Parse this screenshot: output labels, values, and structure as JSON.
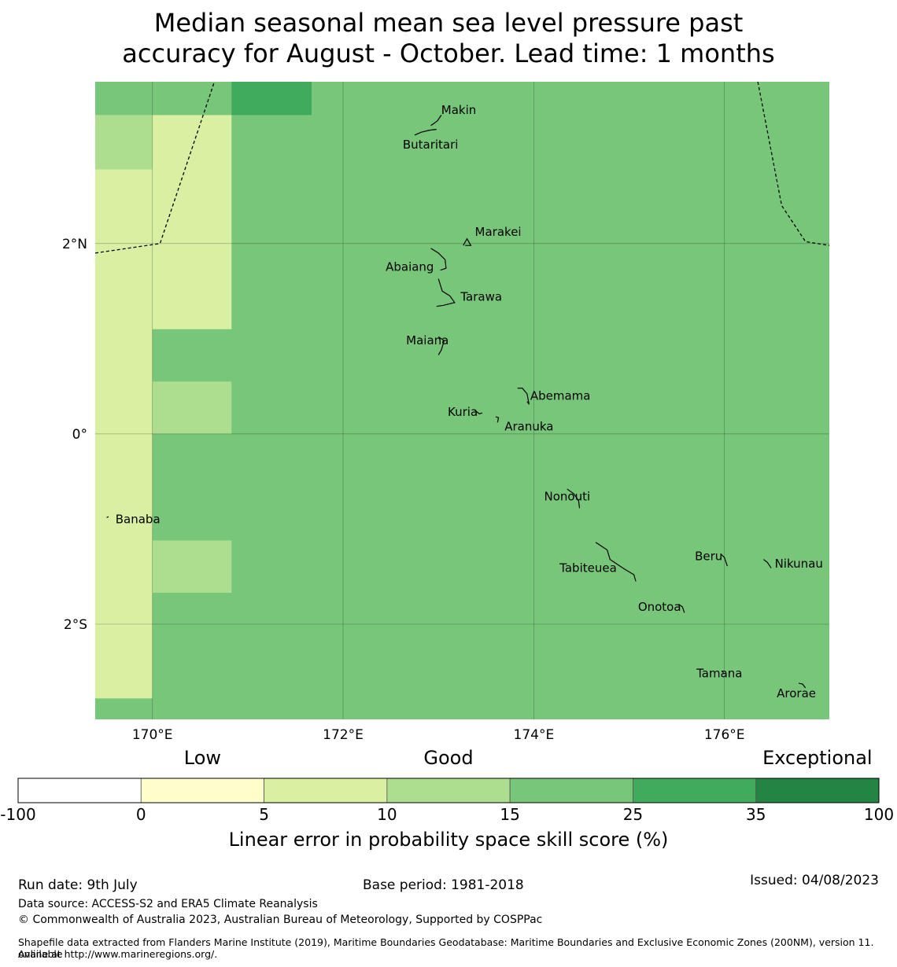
{
  "title": {
    "line1": "Median seasonal mean sea level pressure past",
    "line2": "accuracy for August - October. Lead time: 1 months"
  },
  "map": {
    "lon_range": [
      169.4,
      177.1
    ],
    "lat_range": [
      -3.0,
      3.7
    ],
    "x_ticks": [
      {
        "value": 170,
        "label": "170°E"
      },
      {
        "value": 172,
        "label": "172°E"
      },
      {
        "value": 174,
        "label": "174°E"
      },
      {
        "value": 176,
        "label": "176°E"
      }
    ],
    "y_ticks": [
      {
        "value": 2,
        "label": "2°N"
      },
      {
        "value": 0,
        "label": "0°"
      },
      {
        "value": -2,
        "label": "2°S"
      }
    ],
    "background_color": "#78c679",
    "cells": [
      {
        "lon0": 169.4,
        "lon1": 170.0,
        "lat0": 3.35,
        "lat1": 3.7,
        "color": "#78c679"
      },
      {
        "lon0": 170.0,
        "lon1": 170.83,
        "lat0": 3.35,
        "lat1": 3.7,
        "color": "#78c679"
      },
      {
        "lon0": 170.83,
        "lon1": 171.67,
        "lat0": 3.35,
        "lat1": 3.7,
        "color": "#41ab5d"
      },
      {
        "lon0": 169.4,
        "lon1": 170.0,
        "lat0": 2.78,
        "lat1": 3.35,
        "color": "#addd8e"
      },
      {
        "lon0": 169.4,
        "lon1": 170.0,
        "lat0": -2.78,
        "lat1": 2.78,
        "color": "#d9f0a3"
      },
      {
        "lon0": 170.0,
        "lon1": 170.83,
        "lat0": 1.1,
        "lat1": 3.35,
        "color": "#d9f0a3"
      },
      {
        "lon0": 170.0,
        "lon1": 170.83,
        "lat0": 0.0,
        "lat1": 0.55,
        "color": "#addd8e"
      },
      {
        "lon0": 170.0,
        "lon1": 170.83,
        "lat0": -1.67,
        "lat1": -1.12,
        "color": "#addd8e"
      }
    ],
    "boundaries": [
      [
        [
          169.4,
          1.9
        ],
        [
          170.08,
          2.0
        ],
        [
          170.65,
          3.7
        ]
      ],
      [
        [
          176.35,
          3.7
        ],
        [
          176.6,
          2.4
        ],
        [
          176.85,
          2.02
        ],
        [
          177.1,
          1.98
        ]
      ]
    ],
    "islands": [
      {
        "name": "Makin",
        "label": "Makin",
        "lon": 172.98,
        "lat": 3.33,
        "label_dx": 6,
        "label_dy": -4,
        "anchor": "start",
        "shape": [
          [
            172.92,
            3.24
          ],
          [
            172.95,
            3.26
          ],
          [
            172.99,
            3.29
          ],
          [
            173.03,
            3.35
          ]
        ]
      },
      {
        "name": "Butaritari",
        "label": "Butaritari",
        "lon": 172.95,
        "lat": 3.08,
        "label_dx": -4,
        "label_dy": 10,
        "anchor": "middle",
        "shape": [
          [
            172.75,
            3.14
          ],
          [
            172.82,
            3.17
          ],
          [
            172.9,
            3.19
          ],
          [
            172.98,
            3.2
          ]
        ]
      },
      {
        "name": "Marakei",
        "label": "Marakei",
        "lon": 173.3,
        "lat": 2.0,
        "label_dx": 10,
        "label_dy": -10,
        "anchor": "start",
        "shape": [
          [
            173.26,
            1.98
          ],
          [
            173.3,
            2.05
          ],
          [
            173.34,
            1.98
          ],
          [
            173.28,
            1.98
          ]
        ]
      },
      {
        "name": "Abaiang",
        "label": "Abaiang",
        "lon": 172.98,
        "lat": 1.78,
        "label_dx": -34,
        "label_dy": 8,
        "anchor": "middle",
        "shape": [
          [
            172.92,
            1.95
          ],
          [
            173.0,
            1.9
          ],
          [
            173.07,
            1.83
          ],
          [
            173.08,
            1.74
          ],
          [
            173.02,
            1.72
          ]
        ]
      },
      {
        "name": "Tarawa",
        "label": "Tarawa",
        "lon": 173.15,
        "lat": 1.4,
        "label_dx": 10,
        "label_dy": 0,
        "anchor": "start",
        "shape": [
          [
            173.0,
            1.63
          ],
          [
            173.04,
            1.5
          ],
          [
            173.12,
            1.45
          ],
          [
            173.17,
            1.38
          ],
          [
            173.05,
            1.35
          ],
          [
            172.98,
            1.34
          ]
        ]
      },
      {
        "name": "Maiana",
        "label": "Maiana",
        "lon": 173.05,
        "lat": 0.95,
        "label_dx": -20,
        "label_dy": 1,
        "anchor": "middle",
        "shape": [
          [
            173.0,
            1.02
          ],
          [
            173.06,
            0.98
          ],
          [
            173.03,
            0.88
          ],
          [
            173.0,
            0.83
          ]
        ]
      },
      {
        "name": "Abemama",
        "label": "Abemama",
        "lon": 173.88,
        "lat": 0.4,
        "label_dx": 10,
        "label_dy": 5,
        "anchor": "start",
        "shape": [
          [
            173.83,
            0.48
          ],
          [
            173.88,
            0.48
          ],
          [
            173.93,
            0.42
          ],
          [
            173.95,
            0.31
          ],
          [
            173.93,
            0.34
          ]
        ]
      },
      {
        "name": "Kuria",
        "label": "Kuria",
        "lon": 173.42,
        "lat": 0.22,
        "label_dx": -20,
        "label_dy": 4,
        "anchor": "middle",
        "shape": [
          [
            173.38,
            0.25
          ],
          [
            173.43,
            0.21
          ],
          [
            173.46,
            0.22
          ]
        ]
      },
      {
        "name": "Aranuka",
        "label": "Aranuka",
        "lon": 173.62,
        "lat": 0.15,
        "label_dx": 40,
        "label_dy": 14,
        "anchor": "middle",
        "shape": [
          [
            173.6,
            0.18
          ],
          [
            173.63,
            0.17
          ],
          [
            173.62,
            0.12
          ]
        ]
      },
      {
        "name": "Nonouti",
        "label": "Nonouti",
        "lon": 174.4,
        "lat": -0.65,
        "label_dx": -6,
        "label_dy": 6,
        "anchor": "middle",
        "shape": [
          [
            174.35,
            -0.58
          ],
          [
            174.42,
            -0.63
          ],
          [
            174.47,
            -0.7
          ],
          [
            174.48,
            -0.78
          ]
        ]
      },
      {
        "name": "Tabiteuea",
        "label": "Tabiteuea",
        "lon": 174.95,
        "lat": -1.45,
        "label_dx": -46,
        "label_dy": 0,
        "anchor": "middle",
        "shape": [
          [
            174.65,
            -1.14
          ],
          [
            174.77,
            -1.22
          ],
          [
            174.8,
            -1.32
          ],
          [
            174.95,
            -1.42
          ],
          [
            175.05,
            -1.48
          ],
          [
            175.07,
            -1.55
          ]
        ]
      },
      {
        "name": "Beru",
        "label": "Beru",
        "lon": 176.0,
        "lat": -1.32,
        "label_dx": -20,
        "label_dy": 1,
        "anchor": "middle",
        "shape": [
          [
            175.96,
            -1.26
          ],
          [
            176.0,
            -1.3
          ],
          [
            176.03,
            -1.39
          ]
        ]
      },
      {
        "name": "Nikunau",
        "label": "Nikunau",
        "lon": 176.45,
        "lat": -1.38,
        "label_dx": 40,
        "label_dy": 3,
        "anchor": "middle",
        "shape": [
          [
            176.41,
            -1.32
          ],
          [
            176.45,
            -1.35
          ],
          [
            176.49,
            -1.41
          ]
        ]
      },
      {
        "name": "Onotoa",
        "label": "Onotoa",
        "lon": 175.55,
        "lat": -1.85,
        "label_dx": -28,
        "label_dy": 1,
        "anchor": "middle",
        "shape": [
          [
            175.52,
            -1.79
          ],
          [
            175.56,
            -1.82
          ],
          [
            175.58,
            -1.88
          ]
        ]
      },
      {
        "name": "Tamana",
        "label": "Tamana",
        "lon": 175.98,
        "lat": -2.5,
        "label_dx": -4,
        "label_dy": 7,
        "anchor": "middle",
        "shape": [
          [
            175.97,
            -2.49
          ],
          [
            175.99,
            -2.51
          ]
        ]
      },
      {
        "name": "Arorae",
        "label": "Arorae",
        "lon": 176.82,
        "lat": -2.63,
        "label_dx": -8,
        "label_dy": 17,
        "anchor": "middle",
        "shape": [
          [
            176.78,
            -2.62
          ],
          [
            176.82,
            -2.63
          ],
          [
            176.85,
            -2.67
          ]
        ]
      },
      {
        "name": "Banaba",
        "label": "Banaba",
        "lon": 169.53,
        "lat": -0.88,
        "label_dx": 10,
        "label_dy": 7,
        "anchor": "start",
        "shape": [
          [
            169.52,
            -0.88
          ],
          [
            169.54,
            -0.87
          ]
        ]
      }
    ]
  },
  "colorbar": {
    "categories": [
      {
        "label": "Low",
        "at": 1.5
      },
      {
        "label": "Good",
        "at": 3.5
      },
      {
        "label": "Exceptional",
        "at": 6.5
      }
    ],
    "bins": [
      {
        "from": -100,
        "to": 0,
        "color": "#ffffff"
      },
      {
        "from": 0,
        "to": 5,
        "color": "#ffffcc"
      },
      {
        "from": 5,
        "to": 10,
        "color": "#d9f0a3"
      },
      {
        "from": 10,
        "to": 15,
        "color": "#addd8e"
      },
      {
        "from": 15,
        "to": 25,
        "color": "#78c679"
      },
      {
        "from": 25,
        "to": 35,
        "color": "#41ab5d"
      },
      {
        "from": 35,
        "to": 100,
        "color": "#238443"
      }
    ],
    "tick_labels": [
      "-100",
      "0",
      "5",
      "10",
      "15",
      "25",
      "35",
      "100"
    ],
    "label": "Linear error in probability space skill score (%)"
  },
  "footer": {
    "run_date": "Run date: 9th July",
    "base_period": "Base period: 1981-2018",
    "issued": "Issued: 04/08/2023",
    "data_source": "Data source: ACCESS-S2 and ERA5 Climate Reanalysis",
    "copyright": "© Commonwealth of Australia 2023, Australian Bureau of Meteorology, Supported by COSPPac",
    "shapefile_line1": "Shapefile data extracted from Flanders Marine Institute (2019), Maritime Boundaries Geodatabase: Maritime Boundaries and Exclusive Economic Zones (200NM), version 11. Available",
    "shapefile_line2": "online at http://www.marineregions.org/."
  }
}
